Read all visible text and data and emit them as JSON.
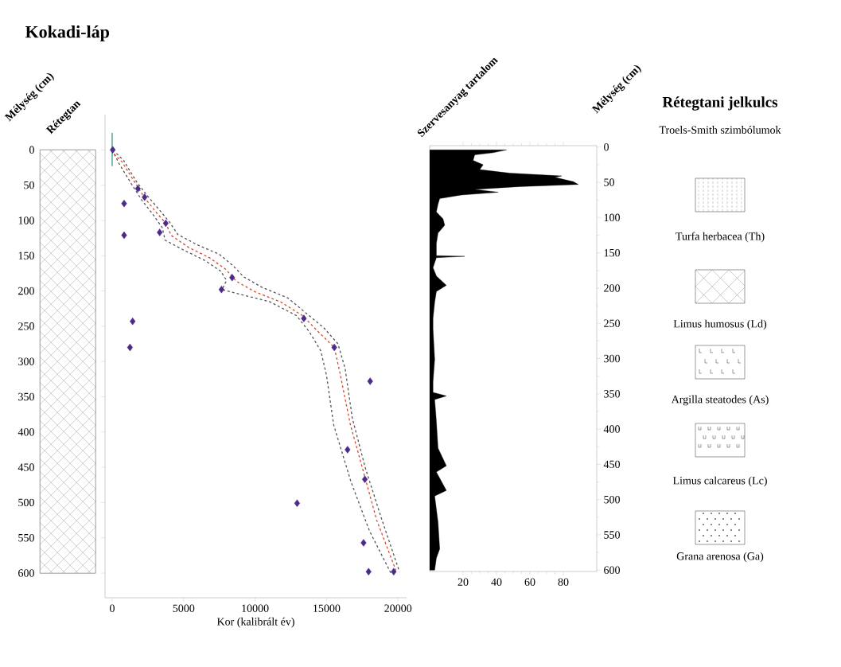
{
  "chart_data": [
    {
      "type": "line",
      "title": "Kokadi-láp",
      "xlabel": "Kor (kalibrált év)",
      "ylabel": "Mélység (cm)",
      "annotations": [
        "Rétegtan"
      ],
      "xlim": [
        -500,
        20600
      ],
      "xticks": [
        0,
        5000,
        10000,
        15000,
        20000
      ],
      "ylim": [
        635,
        -50
      ],
      "yticks": [
        0,
        50,
        100,
        150,
        200,
        250,
        300,
        350,
        400,
        450,
        500,
        550,
        600
      ],
      "series": [
        {
          "type": "line",
          "color": "#3a9a8a",
          "line_style": "solid",
          "x": [
            0,
            0
          ],
          "values": [
            -24,
            23
          ]
        },
        {
          "type": "line",
          "color": "#555555",
          "line_style": "dashed",
          "x": [
            0,
            500,
            1400,
            2100,
            2800,
            3500,
            3700,
            5000,
            6500,
            7600,
            8000,
            7700,
            9000,
            11000,
            12900,
            13800,
            14600,
            15000,
            15500,
            16700,
            18000,
            19500
          ],
          "values": [
            0,
            20,
            50,
            72,
            90,
            110,
            128,
            142,
            157,
            172,
            185,
            198,
            205,
            215,
            235,
            258,
            285,
            320,
            390,
            470,
            540,
            600
          ]
        },
        {
          "type": "line",
          "color": "#555555",
          "line_style": "dashed",
          "x": [
            300,
            800,
            1700,
            2500,
            3300,
            4000,
            4600,
            6000,
            7500,
            8500,
            9200,
            10500,
            12300,
            13600,
            14800,
            15800,
            16300,
            16800,
            17700,
            18800,
            20100
          ],
          "values": [
            5,
            15,
            45,
            66,
            85,
            102,
            120,
            135,
            148,
            165,
            180,
            195,
            210,
            232,
            252,
            275,
            310,
            380,
            450,
            520,
            598
          ]
        },
        {
          "type": "line",
          "color": "#d9472b",
          "line_style": "dashed",
          "x": [
            0,
            40,
            690,
            1615,
            2270,
            3100,
            3750,
            4120,
            5330,
            6815,
            7930,
            8670,
            9970,
            11830,
            13315,
            14430,
            15540,
            15915,
            16660,
            17590,
            18510,
            19850
          ],
          "values": [
            0,
            4,
            17,
            47,
            68,
            89,
            104,
            121,
            138,
            153,
            169,
            186,
            201,
            216,
            235,
            258,
            280,
            314,
            389,
            457,
            525,
            596
          ]
        },
        {
          "type": "scatter",
          "color": "#4b2a8c",
          "marker": "diamond",
          "x": [
            40,
            1800,
            2270,
            835,
            3750,
            835,
            3325,
            8395,
            7650,
            13410,
            1430,
            1245,
            15540,
            18050,
            16470,
            17680,
            12940,
            17590,
            17940,
            19700
          ],
          "values": [
            0,
            55,
            67,
            76,
            104,
            121,
            117,
            181,
            198,
            239,
            243,
            280,
            280,
            328,
            425,
            467,
            501,
            557,
            598,
            598
          ]
        }
      ]
    },
    {
      "type": "area",
      "title": "Szervesanyag tartalom",
      "ylabel": "Mélység (cm)",
      "color": "#000000",
      "xlim": [
        0,
        100
      ],
      "xticks": [
        20,
        40,
        60,
        80
      ],
      "ylim": [
        602,
        -2
      ],
      "yticks": [
        0,
        50,
        100,
        150,
        200,
        250,
        300,
        350,
        400,
        450,
        500,
        550,
        600
      ],
      "x": [
        0,
        46,
        38,
        27,
        26,
        32,
        30,
        48,
        79,
        75,
        86,
        89,
        54,
        27,
        41,
        19,
        6,
        5,
        4,
        8,
        9,
        5,
        4,
        4,
        21,
        4,
        2,
        4,
        10,
        4,
        3,
        2,
        2,
        3,
        2,
        2,
        10,
        3,
        4,
        5,
        10,
        4,
        10,
        3,
        5,
        6,
        4,
        3,
        0
      ],
      "values": [
        4,
        4,
        8,
        11,
        19,
        25,
        32,
        37,
        41,
        43,
        49,
        53,
        56,
        60,
        64,
        68,
        73,
        81,
        92,
        102,
        111,
        122,
        137,
        154,
        155,
        157,
        171,
        183,
        196,
        205,
        220,
        243,
        258,
        301,
        333,
        348,
        353,
        358,
        389,
        427,
        452,
        461,
        487,
        495,
        532,
        570,
        583,
        600,
        600
      ]
    },
    {
      "type": "other",
      "title": "Rétegtani jelkulcs",
      "subtitle": "Troels-Smith szimbólumok",
      "categories": [
        "Turfa herbacea (Th)",
        "Limus humosus (Ld)",
        "Argilla steatodes (As)",
        "Limus calcareus (Lc)",
        "Grana arenosa (Ga)"
      ]
    }
  ]
}
